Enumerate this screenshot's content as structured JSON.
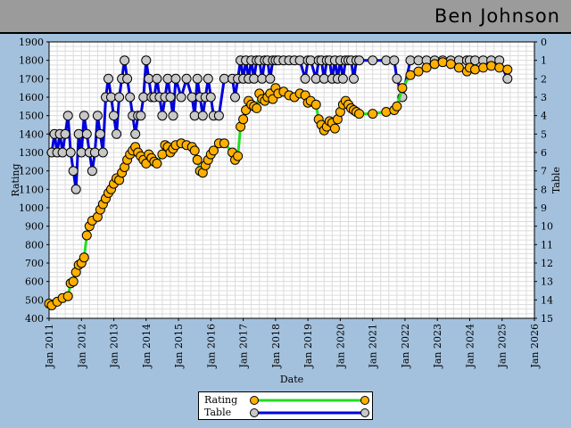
{
  "header": {
    "name": "Ben Johnson"
  },
  "chart_data": {
    "type": "line",
    "xlabel": "Date",
    "ylabel": "Rating",
    "y2label": "Table",
    "xlim": [
      "2011-01",
      "2026-01"
    ],
    "ylim": [
      400,
      1900
    ],
    "y2lim": [
      0,
      15
    ],
    "y2_inverted": true,
    "grid": true,
    "legend_position": "bottom-center",
    "x_ticks": [
      "Jan 2011",
      "Jan 2012",
      "Jan 2013",
      "Jan 2014",
      "Jan 2015",
      "Jan 2016",
      "Jan 2017",
      "Jan 2018",
      "Jan 2019",
      "Jan 2020",
      "Jan 2021",
      "Jan 2022",
      "Jan 2023",
      "Jan 2024",
      "Jan 2025",
      "Jan 2026"
    ],
    "y_ticks": [
      400,
      500,
      600,
      700,
      800,
      900,
      1000,
      1100,
      1200,
      1300,
      1400,
      1500,
      1600,
      1700,
      1800,
      1900
    ],
    "y2_ticks": [
      0,
      1,
      2,
      3,
      4,
      5,
      6,
      7,
      8,
      9,
      10,
      11,
      12,
      13,
      14,
      15
    ],
    "colors": {
      "rating_line": "#22dd22",
      "rating_marker": "#ffb000",
      "table_line": "#0000dd",
      "table_marker": "#c8c8c8"
    },
    "series": [
      {
        "name": "Rating",
        "axis": "left",
        "points": [
          [
            "2011-01",
            480
          ],
          [
            "2011-02",
            470
          ],
          [
            "2011-04",
            490
          ],
          [
            "2011-06",
            510
          ],
          [
            "2011-08",
            520
          ],
          [
            "2011-09",
            590
          ],
          [
            "2011-10",
            600
          ],
          [
            "2011-11",
            650
          ],
          [
            "2011-12",
            690
          ],
          [
            "2012-01",
            700
          ],
          [
            "2012-02",
            730
          ],
          [
            "2012-03",
            850
          ],
          [
            "2012-04",
            900
          ],
          [
            "2012-05",
            930
          ],
          [
            "2012-07",
            950
          ],
          [
            "2012-08",
            990
          ],
          [
            "2012-09",
            1020
          ],
          [
            "2012-10",
            1050
          ],
          [
            "2012-11",
            1080
          ],
          [
            "2012-12",
            1100
          ],
          [
            "2013-01",
            1130
          ],
          [
            "2013-02",
            1160
          ],
          [
            "2013-03",
            1150
          ],
          [
            "2013-04",
            1190
          ],
          [
            "2013-05",
            1220
          ],
          [
            "2013-06",
            1260
          ],
          [
            "2013-07",
            1290
          ],
          [
            "2013-08",
            1310
          ],
          [
            "2013-09",
            1330
          ],
          [
            "2013-10",
            1300
          ],
          [
            "2013-11",
            1280
          ],
          [
            "2013-12",
            1260
          ],
          [
            "2014-01",
            1240
          ],
          [
            "2014-02",
            1290
          ],
          [
            "2014-03",
            1270
          ],
          [
            "2014-04",
            1250
          ],
          [
            "2014-05",
            1240
          ],
          [
            "2014-07",
            1290
          ],
          [
            "2014-08",
            1340
          ],
          [
            "2014-09",
            1330
          ],
          [
            "2014-10",
            1300
          ],
          [
            "2014-11",
            1320
          ],
          [
            "2014-12",
            1340
          ],
          [
            "2015-02",
            1350
          ],
          [
            "2015-04",
            1340
          ],
          [
            "2015-06",
            1330
          ],
          [
            "2015-07",
            1310
          ],
          [
            "2015-08",
            1260
          ],
          [
            "2015-09",
            1200
          ],
          [
            "2015-10",
            1190
          ],
          [
            "2015-11",
            1230
          ],
          [
            "2015-12",
            1260
          ],
          [
            "2016-01",
            1290
          ],
          [
            "2016-02",
            1310
          ],
          [
            "2016-04",
            1350
          ],
          [
            "2016-06",
            1350
          ],
          [
            "2016-09",
            1300
          ],
          [
            "2016-10",
            1260
          ],
          [
            "2016-11",
            1280
          ],
          [
            "2016-12",
            1440
          ],
          [
            "2017-01",
            1480
          ],
          [
            "2017-02",
            1530
          ],
          [
            "2017-03",
            1580
          ],
          [
            "2017-04",
            1560
          ],
          [
            "2017-05",
            1550
          ],
          [
            "2017-06",
            1540
          ],
          [
            "2017-07",
            1620
          ],
          [
            "2017-08",
            1590
          ],
          [
            "2017-09",
            1580
          ],
          [
            "2017-10",
            1600
          ],
          [
            "2017-11",
            1620
          ],
          [
            "2017-12",
            1590
          ],
          [
            "2018-01",
            1650
          ],
          [
            "2018-02",
            1620
          ],
          [
            "2018-04",
            1630
          ],
          [
            "2018-06",
            1610
          ],
          [
            "2018-08",
            1600
          ],
          [
            "2018-10",
            1620
          ],
          [
            "2018-12",
            1610
          ],
          [
            "2019-01",
            1570
          ],
          [
            "2019-02",
            1580
          ],
          [
            "2019-04",
            1560
          ],
          [
            "2019-05",
            1480
          ],
          [
            "2019-06",
            1450
          ],
          [
            "2019-07",
            1420
          ],
          [
            "2019-08",
            1440
          ],
          [
            "2019-09",
            1470
          ],
          [
            "2019-10",
            1460
          ],
          [
            "2019-11",
            1430
          ],
          [
            "2019-12",
            1480
          ],
          [
            "2020-01",
            1520
          ],
          [
            "2020-02",
            1560
          ],
          [
            "2020-03",
            1580
          ],
          [
            "2020-04",
            1560
          ],
          [
            "2020-05",
            1540
          ],
          [
            "2020-06",
            1530
          ],
          [
            "2020-07",
            1520
          ],
          [
            "2020-08",
            1510
          ],
          [
            "2021-01",
            1510
          ],
          [
            "2021-06",
            1520
          ],
          [
            "2021-09",
            1530
          ],
          [
            "2021-10",
            1550
          ],
          [
            "2021-12",
            1650
          ],
          [
            "2022-03",
            1720
          ],
          [
            "2022-06",
            1740
          ],
          [
            "2022-09",
            1760
          ],
          [
            "2022-12",
            1780
          ],
          [
            "2023-03",
            1790
          ],
          [
            "2023-06",
            1780
          ],
          [
            "2023-09",
            1760
          ],
          [
            "2023-12",
            1740
          ],
          [
            "2024-01",
            1760
          ],
          [
            "2024-03",
            1750
          ],
          [
            "2024-06",
            1760
          ],
          [
            "2024-09",
            1770
          ],
          [
            "2024-12",
            1760
          ],
          [
            "2025-03",
            1750
          ]
        ]
      },
      {
        "name": "Table",
        "axis": "right",
        "points": [
          [
            "2011-02",
            6
          ],
          [
            "2011-03",
            5
          ],
          [
            "2011-04",
            6
          ],
          [
            "2011-05",
            5
          ],
          [
            "2011-06",
            6
          ],
          [
            "2011-07",
            5
          ],
          [
            "2011-08",
            4
          ],
          [
            "2011-09",
            6
          ],
          [
            "2011-10",
            7
          ],
          [
            "2011-11",
            8
          ],
          [
            "2011-12",
            5
          ],
          [
            "2012-01",
            6
          ],
          [
            "2012-02",
            4
          ],
          [
            "2012-03",
            5
          ],
          [
            "2012-04",
            6
          ],
          [
            "2012-05",
            7
          ],
          [
            "2012-06",
            6
          ],
          [
            "2012-07",
            4
          ],
          [
            "2012-08",
            5
          ],
          [
            "2012-09",
            6
          ],
          [
            "2012-10",
            3
          ],
          [
            "2012-11",
            2
          ],
          [
            "2012-12",
            3
          ],
          [
            "2013-01",
            4
          ],
          [
            "2013-02",
            5
          ],
          [
            "2013-03",
            3
          ],
          [
            "2013-04",
            2
          ],
          [
            "2013-05",
            1
          ],
          [
            "2013-06",
            2
          ],
          [
            "2013-07",
            3
          ],
          [
            "2013-08",
            4
          ],
          [
            "2013-09",
            5
          ],
          [
            "2013-10",
            4
          ],
          [
            "2013-11",
            4
          ],
          [
            "2013-12",
            3
          ],
          [
            "2014-01",
            1
          ],
          [
            "2014-02",
            2
          ],
          [
            "2014-03",
            3
          ],
          [
            "2014-04",
            3
          ],
          [
            "2014-05",
            2
          ],
          [
            "2014-06",
            3
          ],
          [
            "2014-07",
            4
          ],
          [
            "2014-08",
            3
          ],
          [
            "2014-09",
            2
          ],
          [
            "2014-10",
            3
          ],
          [
            "2014-11",
            4
          ],
          [
            "2014-12",
            2
          ],
          [
            "2015-02",
            3
          ],
          [
            "2015-04",
            2
          ],
          [
            "2015-06",
            3
          ],
          [
            "2015-07",
            4
          ],
          [
            "2015-08",
            2
          ],
          [
            "2015-09",
            3
          ],
          [
            "2015-10",
            4
          ],
          [
            "2015-11",
            3
          ],
          [
            "2015-12",
            2
          ],
          [
            "2016-01",
            3
          ],
          [
            "2016-02",
            4
          ],
          [
            "2016-04",
            4
          ],
          [
            "2016-06",
            2
          ],
          [
            "2016-09",
            2
          ],
          [
            "2016-10",
            3
          ],
          [
            "2016-11",
            2
          ],
          [
            "2016-12",
            1
          ],
          [
            "2017-01",
            2
          ],
          [
            "2017-02",
            1
          ],
          [
            "2017-03",
            2
          ],
          [
            "2017-04",
            1
          ],
          [
            "2017-05",
            2
          ],
          [
            "2017-06",
            1
          ],
          [
            "2017-07",
            1
          ],
          [
            "2017-08",
            2
          ],
          [
            "2017-09",
            1
          ],
          [
            "2017-10",
            1
          ],
          [
            "2017-11",
            2
          ],
          [
            "2017-12",
            1
          ],
          [
            "2018-01",
            1
          ],
          [
            "2018-02",
            1
          ],
          [
            "2018-04",
            1
          ],
          [
            "2018-06",
            1
          ],
          [
            "2018-08",
            1
          ],
          [
            "2018-10",
            1
          ],
          [
            "2018-12",
            2
          ],
          [
            "2019-01",
            1
          ],
          [
            "2019-02",
            1
          ],
          [
            "2019-04",
            2
          ],
          [
            "2019-05",
            1
          ],
          [
            "2019-06",
            1
          ],
          [
            "2019-07",
            2
          ],
          [
            "2019-08",
            1
          ],
          [
            "2019-09",
            1
          ],
          [
            "2019-10",
            2
          ],
          [
            "2019-11",
            1
          ],
          [
            "2019-12",
            2
          ],
          [
            "2020-01",
            1
          ],
          [
            "2020-02",
            2
          ],
          [
            "2020-03",
            1
          ],
          [
            "2020-04",
            1
          ],
          [
            "2020-05",
            1
          ],
          [
            "2020-06",
            2
          ],
          [
            "2020-07",
            1
          ],
          [
            "2020-08",
            1
          ],
          [
            "2021-01",
            1
          ],
          [
            "2021-06",
            1
          ],
          [
            "2021-09",
            1
          ],
          [
            "2021-10",
            2
          ],
          [
            "2021-12",
            3
          ],
          [
            "2022-03",
            1
          ],
          [
            "2022-06",
            1
          ],
          [
            "2022-09",
            1
          ],
          [
            "2022-12",
            1
          ],
          [
            "2023-03",
            1
          ],
          [
            "2023-06",
            1
          ],
          [
            "2023-09",
            1
          ],
          [
            "2023-12",
            1
          ],
          [
            "2024-01",
            1
          ],
          [
            "2024-03",
            1
          ],
          [
            "2024-06",
            1
          ],
          [
            "2024-09",
            1
          ],
          [
            "2024-12",
            1
          ],
          [
            "2025-03",
            2
          ]
        ]
      }
    ]
  }
}
